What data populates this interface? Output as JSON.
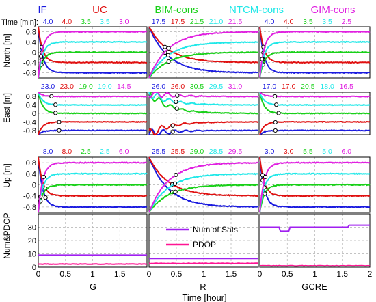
{
  "chart_data": {
    "type": "line",
    "legend_top": [
      {
        "label": "IF",
        "color": "#1a1adf"
      },
      {
        "label": "UC",
        "color": "#e01010"
      },
      {
        "label": "BIM-cons",
        "color": "#18d018"
      },
      {
        "label": "NTCM-cons",
        "color": "#20e8e8"
      },
      {
        "label": "GIM-cons",
        "color": "#e020e0"
      }
    ],
    "time_label": "Time [min]:",
    "series_colors": [
      "#1a1adf",
      "#e01010",
      "#18d018",
      "#20e8e8",
      "#e020e0"
    ],
    "convergence_times": {
      "North": {
        "G": [
          "4.0",
          "4.0",
          "3.5",
          "3.5",
          "3.0"
        ],
        "R": [
          "17.5",
          "17.5",
          "21.5",
          "21.0",
          "21.5"
        ],
        "GCRE": [
          "4.0",
          "4.0",
          "3.5",
          "3.5",
          "2.5"
        ]
      },
      "East": {
        "G": [
          "23.0",
          "23.0",
          "19.0",
          "19.0",
          "14.5"
        ],
        "R": [
          "26.0",
          "26.0",
          "30.5",
          "29.5",
          "31.0"
        ],
        "GCRE": [
          "17.0",
          "17.0",
          "20.5",
          "18.0",
          "16.5"
        ]
      },
      "Up": {
        "G": [
          "8.0",
          "8.0",
          "2.5",
          "2.5",
          "6.0"
        ],
        "R": [
          "25.5",
          "25.5",
          "29.0",
          "28.5",
          "29.5"
        ],
        "GCRE": [
          "3.0",
          "3.0",
          "5.5",
          "5.0",
          "6.0"
        ]
      }
    },
    "row_labels": [
      "North [m]",
      "East [m]",
      "Up [m]"
    ],
    "error_yticks": [
      "0.8",
      "0.4",
      "0",
      "-0.4",
      "-0.8"
    ],
    "error_ytick_values": [
      0.8,
      0.4,
      0,
      -0.4,
      -0.8
    ],
    "error_ylim": [
      -1.0,
      1.0
    ],
    "bottom_ylabel": "Num&PDOP",
    "bottom_yticks": [
      "30",
      "20",
      "10",
      "0"
    ],
    "bottom_ytick_values": [
      30,
      20,
      10,
      0
    ],
    "bottom_ylim": [
      0,
      40
    ],
    "systems": [
      "G",
      "R",
      "GCRE"
    ],
    "xticks": [
      {
        "value": 0,
        "label": "0"
      },
      {
        "value": 0.5,
        "label": "0.5"
      },
      {
        "value": 1,
        "label": "1"
      },
      {
        "value": 1.5,
        "label": "1.5"
      },
      {
        "value": 2,
        "label": "2"
      }
    ],
    "xlim": [
      0,
      2
    ],
    "xlabel": "Time [hour]",
    "bottom_legend": [
      {
        "label": "Num of Sats",
        "color": "#a020f0"
      },
      {
        "label": "PDOP",
        "color": "#ff1493"
      }
    ],
    "num_sats": {
      "G": 9,
      "R": 6.5,
      "GCRE": 30
    },
    "pdop": {
      "G": 2.3,
      "R": 2.8,
      "GCRE": 1.0
    },
    "steady_offsets": [
      -0.8,
      -0.4,
      0.0,
      0.4,
      0.8
    ],
    "grid": true
  }
}
